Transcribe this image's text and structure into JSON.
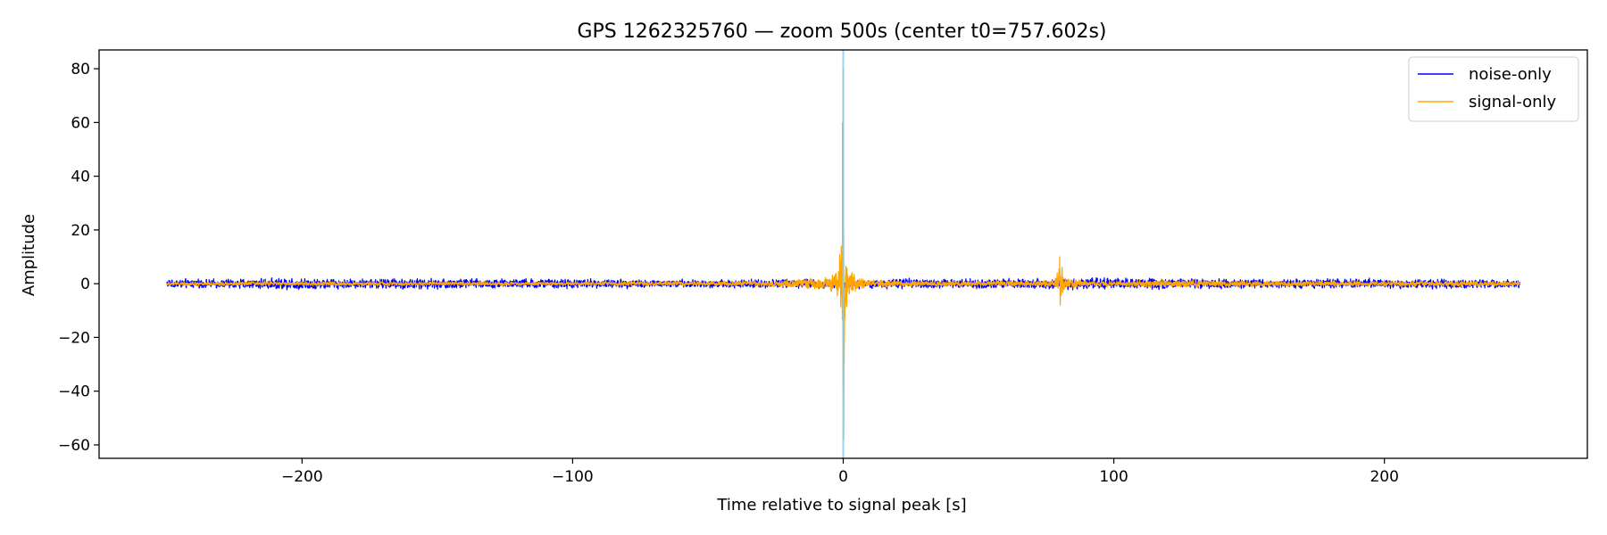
{
  "chart_data": {
    "type": "line",
    "title": "GPS 1262325760 — zoom 500s (center t0=757.602s)",
    "xlabel": "Time relative to signal peak [s]",
    "ylabel": "Amplitude",
    "xlim": [
      -275,
      275
    ],
    "ylim": [
      -65,
      87
    ],
    "xticks": [
      -200,
      -100,
      0,
      100,
      200
    ],
    "xtick_labels": [
      "−200",
      "−100",
      "0",
      "100",
      "200"
    ],
    "yticks": [
      -60,
      -40,
      -20,
      0,
      20,
      40,
      60,
      80
    ],
    "ytick_labels": [
      "−60",
      "−40",
      "−20",
      "0",
      "20",
      "40",
      "60",
      "80"
    ],
    "grid": false,
    "legend_position": "top-right",
    "vline": {
      "x": 0,
      "color": "#87ceeb"
    },
    "series": [
      {
        "name": "noise-only",
        "color": "#0000ff",
        "x_range": [
          -250,
          250
        ],
        "envelope": [
          {
            "x": -250,
            "amp": 2.2
          },
          {
            "x": -235,
            "amp": 2.0
          },
          {
            "x": -215,
            "amp": 2.4
          },
          {
            "x": -200,
            "amp": 3.0
          },
          {
            "x": -185,
            "amp": 2.2
          },
          {
            "x": -160,
            "amp": 2.6
          },
          {
            "x": -130,
            "amp": 2.4
          },
          {
            "x": -100,
            "amp": 2.3
          },
          {
            "x": -70,
            "amp": 2.0
          },
          {
            "x": -40,
            "amp": 2.0
          },
          {
            "x": -10,
            "amp": 2.3
          },
          {
            "x": 0,
            "amp": 2.2
          },
          {
            "x": 30,
            "amp": 2.3
          },
          {
            "x": 60,
            "amp": 2.4
          },
          {
            "x": 80,
            "amp": 2.5
          },
          {
            "x": 100,
            "amp": 2.8
          },
          {
            "x": 130,
            "amp": 2.4
          },
          {
            "x": 160,
            "amp": 2.2
          },
          {
            "x": 190,
            "amp": 2.4
          },
          {
            "x": 220,
            "amp": 2.2
          },
          {
            "x": 250,
            "amp": 2.0
          }
        ]
      },
      {
        "name": "signal-only",
        "color": "#ffa500",
        "x_range": [
          -250,
          250
        ],
        "envelope": [
          {
            "x": -250,
            "amp": 1.0
          },
          {
            "x": -200,
            "amp": 1.0
          },
          {
            "x": -100,
            "amp": 0.9
          },
          {
            "x": -30,
            "amp": 1.2
          },
          {
            "x": -5,
            "amp": 3.0
          },
          {
            "x": -2,
            "amp": 8.0
          },
          {
            "x": -0.5,
            "amp": 30.0
          },
          {
            "x": 0,
            "amp": 80.0
          },
          {
            "x": 0.5,
            "amp": 25.0
          },
          {
            "x": 2,
            "amp": 6.0
          },
          {
            "x": 8,
            "amp": 2.0
          },
          {
            "x": 30,
            "amp": 1.2
          },
          {
            "x": 78,
            "amp": 1.5
          },
          {
            "x": 80,
            "amp": 10.0
          },
          {
            "x": 82,
            "amp": 3.0
          },
          {
            "x": 90,
            "amp": 1.2
          },
          {
            "x": 110,
            "amp": 1.6
          },
          {
            "x": 120,
            "amp": 2.0
          },
          {
            "x": 140,
            "amp": 1.5
          },
          {
            "x": 200,
            "amp": 1.2
          },
          {
            "x": 250,
            "amp": 1.2
          }
        ],
        "peaks": [
          {
            "x": 0,
            "max": 80,
            "min": -58
          },
          {
            "x": -0.3,
            "max": 60,
            "min": -38
          },
          {
            "x": 80,
            "max": 10,
            "min": -8
          }
        ]
      }
    ]
  }
}
